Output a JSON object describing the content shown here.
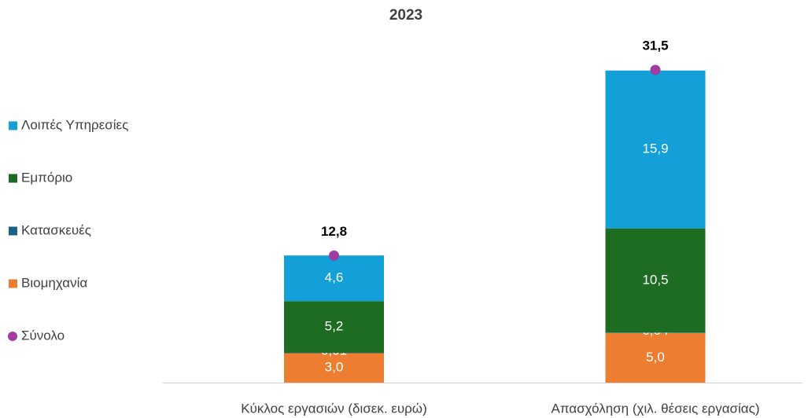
{
  "chart_data": {
    "type": "stacked-bar",
    "title": "2023",
    "categories": [
      "Κύκλος εργασιών (δισεκ. ευρώ)",
      "Απασχόληση (χιλ. θέσεις εργασίας)"
    ],
    "series": [
      {
        "name": "Βιομηχανία",
        "color": "#ed7d31",
        "values": [
          3.0,
          5.0
        ],
        "value_labels": [
          "3,0",
          "5,0"
        ]
      },
      {
        "name": "Κατασκευές",
        "color": "#1b6288",
        "values": [
          0.01,
          0.04
        ],
        "value_labels": [
          "0,01",
          "0,04"
        ]
      },
      {
        "name": "Εμπόριο",
        "color": "#1e6b22",
        "values": [
          5.2,
          10.5
        ],
        "value_labels": [
          "5,2",
          "10,5"
        ]
      },
      {
        "name": "Λοιπές Υπηρεσίες",
        "color": "#139fd8",
        "values": [
          4.6,
          15.9
        ],
        "value_labels": [
          "4,6",
          "15,9"
        ]
      },
      {
        "name": "Σύνολο",
        "color": "#a03ca0",
        "style": "marker",
        "values": [
          12.8,
          31.5
        ],
        "value_labels": [
          "12,8",
          "31,5"
        ]
      }
    ],
    "legend": "left"
  }
}
